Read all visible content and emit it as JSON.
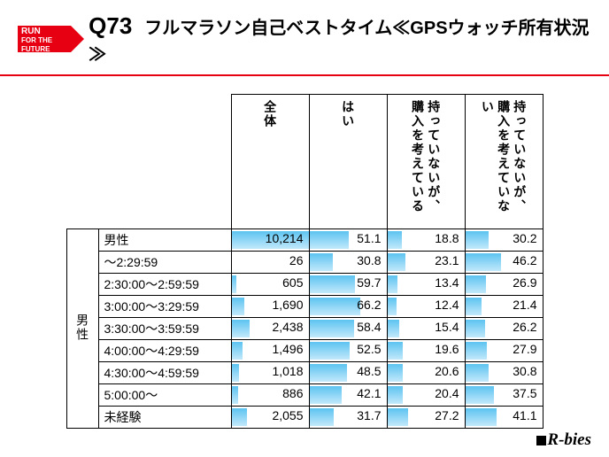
{
  "logo": {
    "line1": "RUN",
    "line2": "FOR THE",
    "line3": "FUTURE",
    "bg": "#e60012"
  },
  "title": {
    "qnum": "Q73",
    "text": "フルマラソン自己ベストタイム≪GPSウォッチ所有状況≫"
  },
  "column_headers": [
    "全体",
    "はい",
    "持っていないが、購入を考えている",
    "持っていないが、購入を考えていない"
  ],
  "row_group_label": "男性",
  "rows": [
    {
      "label": "男性",
      "values": [
        10214,
        51.1,
        18.8,
        30.2
      ]
    },
    {
      "label": "～2:29:59",
      "values": [
        26,
        30.8,
        23.1,
        46.2
      ]
    },
    {
      "label": "2:30:00～2:59:59",
      "values": [
        605,
        59.7,
        13.4,
        26.9
      ]
    },
    {
      "label": "3:00:00～3:29:59",
      "values": [
        1690,
        66.2,
        12.4,
        21.4
      ]
    },
    {
      "label": "3:30:00～3:59:59",
      "values": [
        2438,
        58.4,
        15.4,
        26.2
      ]
    },
    {
      "label": "4:00:00～4:29:59",
      "values": [
        1496,
        52.5,
        19.6,
        27.9
      ]
    },
    {
      "label": "4:30:00～4:59:59",
      "values": [
        1018,
        48.5,
        20.6,
        30.8
      ]
    },
    {
      "label": "5:00:00～",
      "values": [
        886,
        42.1,
        20.4,
        37.5
      ]
    },
    {
      "label": "未経験",
      "values": [
        2055,
        31.7,
        27.2,
        41.1
      ]
    }
  ],
  "max_col0": 10214,
  "bar_color_top": "#5cc3f0",
  "bar_color_bottom": "#c2e9fb",
  "footer_brand": "R-bies"
}
